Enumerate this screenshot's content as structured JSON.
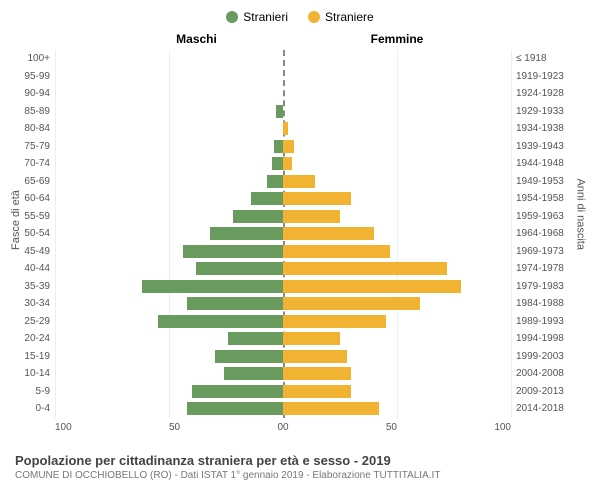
{
  "legend": {
    "male_label": "Stranieri",
    "female_label": "Straniere"
  },
  "headers": {
    "left": "Maschi",
    "right": "Femmine"
  },
  "axis_titles": {
    "left": "Fasce di età",
    "right": "Anni di nascita"
  },
  "colors": {
    "male": "#6a9b5e",
    "female": "#f2b333",
    "grid": "#eeeeee",
    "center": "#888888"
  },
  "x_axis": {
    "max": 100,
    "ticks_left": [
      "100",
      "50",
      "0"
    ],
    "ticks_right": [
      "0",
      "50",
      "100"
    ]
  },
  "age_bands": [
    {
      "age": "100+",
      "birth": "≤ 1918",
      "m": 0,
      "f": 0
    },
    {
      "age": "95-99",
      "birth": "1919-1923",
      "m": 0,
      "f": 0
    },
    {
      "age": "90-94",
      "birth": "1924-1928",
      "m": 0,
      "f": 0
    },
    {
      "age": "85-89",
      "birth": "1929-1933",
      "m": 3,
      "f": 0
    },
    {
      "age": "80-84",
      "birth": "1934-1938",
      "m": 0,
      "f": 2
    },
    {
      "age": "75-79",
      "birth": "1939-1943",
      "m": 4,
      "f": 5
    },
    {
      "age": "70-74",
      "birth": "1944-1948",
      "m": 5,
      "f": 4
    },
    {
      "age": "65-69",
      "birth": "1949-1953",
      "m": 7,
      "f": 14
    },
    {
      "age": "60-64",
      "birth": "1954-1958",
      "m": 14,
      "f": 30
    },
    {
      "age": "55-59",
      "birth": "1959-1963",
      "m": 22,
      "f": 25
    },
    {
      "age": "50-54",
      "birth": "1964-1968",
      "m": 32,
      "f": 40
    },
    {
      "age": "45-49",
      "birth": "1969-1973",
      "m": 44,
      "f": 47
    },
    {
      "age": "40-44",
      "birth": "1974-1978",
      "m": 38,
      "f": 72
    },
    {
      "age": "35-39",
      "birth": "1979-1983",
      "m": 62,
      "f": 78
    },
    {
      "age": "30-34",
      "birth": "1984-1988",
      "m": 42,
      "f": 60
    },
    {
      "age": "25-29",
      "birth": "1989-1993",
      "m": 55,
      "f": 45
    },
    {
      "age": "20-24",
      "birth": "1994-1998",
      "m": 24,
      "f": 25
    },
    {
      "age": "15-19",
      "birth": "1999-2003",
      "m": 30,
      "f": 28
    },
    {
      "age": "10-14",
      "birth": "2004-2008",
      "m": 26,
      "f": 30
    },
    {
      "age": "5-9",
      "birth": "2009-2013",
      "m": 40,
      "f": 30
    },
    {
      "age": "0-4",
      "birth": "2014-2018",
      "m": 42,
      "f": 42
    }
  ],
  "footer": {
    "title": "Popolazione per cittadinanza straniera per età e sesso - 2019",
    "subtitle": "COMUNE DI OCCHIOBELLO (RO) - Dati ISTAT 1° gennaio 2019 - Elaborazione TUTTITALIA.IT"
  }
}
